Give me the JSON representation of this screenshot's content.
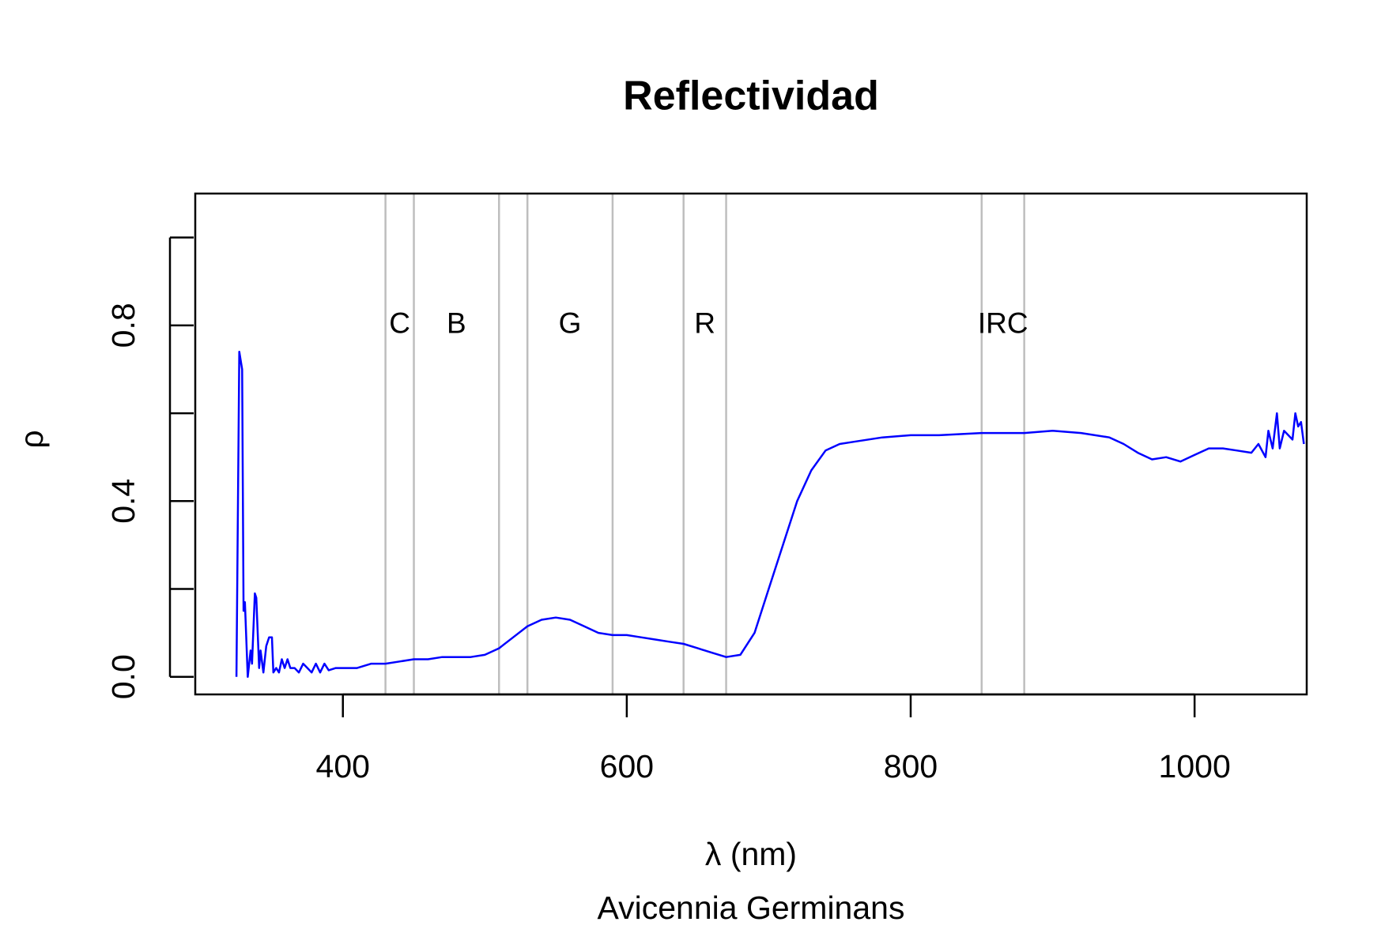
{
  "chart_data": {
    "type": "line",
    "title": "Reflectividad",
    "subtitle": "Avicennia Germinans",
    "xlabel": "λ (nm)",
    "ylabel": "ρ",
    "x": [
      325,
      327,
      329,
      330,
      331,
      333,
      335,
      336,
      338,
      339,
      341,
      342,
      344,
      346,
      348,
      350,
      351,
      353,
      355,
      357,
      359,
      361,
      363,
      366,
      369,
      372,
      375,
      378,
      381,
      384,
      387,
      390,
      395,
      400,
      410,
      420,
      430,
      440,
      450,
      460,
      470,
      480,
      490,
      500,
      510,
      520,
      530,
      540,
      550,
      560,
      570,
      580,
      590,
      600,
      610,
      620,
      630,
      640,
      650,
      660,
      670,
      680,
      690,
      700,
      710,
      720,
      730,
      740,
      750,
      760,
      780,
      800,
      820,
      850,
      880,
      900,
      920,
      940,
      950,
      960,
      970,
      980,
      990,
      1000,
      1010,
      1020,
      1030,
      1040,
      1045,
      1050,
      1052,
      1055,
      1058,
      1060,
      1063,
      1066,
      1069,
      1071,
      1073,
      1075,
      1077
    ],
    "series": [
      {
        "name": "Avicennia Germinans",
        "color": "#0000ff",
        "values": [
          0,
          0.74,
          0.7,
          0.15,
          0.17,
          0.0,
          0.06,
          0.03,
          0.19,
          0.18,
          0.02,
          0.06,
          0.01,
          0.07,
          0.09,
          0.09,
          0.01,
          0.02,
          0.01,
          0.04,
          0.02,
          0.04,
          0.02,
          0.02,
          0.01,
          0.03,
          0.02,
          0.01,
          0.03,
          0.01,
          0.03,
          0.015,
          0.02,
          0.02,
          0.02,
          0.03,
          0.03,
          0.035,
          0.04,
          0.04,
          0.045,
          0.045,
          0.045,
          0.05,
          0.065,
          0.09,
          0.115,
          0.13,
          0.135,
          0.13,
          0.115,
          0.1,
          0.095,
          0.095,
          0.09,
          0.085,
          0.08,
          0.075,
          0.065,
          0.055,
          0.045,
          0.05,
          0.1,
          0.2,
          0.3,
          0.4,
          0.47,
          0.515,
          0.53,
          0.535,
          0.545,
          0.55,
          0.55,
          0.555,
          0.555,
          0.56,
          0.555,
          0.545,
          0.53,
          0.51,
          0.495,
          0.5,
          0.49,
          0.505,
          0.52,
          0.52,
          0.515,
          0.51,
          0.53,
          0.5,
          0.56,
          0.52,
          0.6,
          0.52,
          0.56,
          0.55,
          0.54,
          0.6,
          0.57,
          0.58,
          0.53
        ]
      }
    ],
    "xlim": [
      296,
      1079
    ],
    "ylim": [
      -0.04,
      1.1
    ],
    "xticks": [
      400,
      600,
      800,
      1000
    ],
    "yticks": [
      {
        "value": 0,
        "label": "0.0"
      },
      {
        "value": 0.2,
        "label": null
      },
      {
        "value": 0.4,
        "label": "0.4"
      },
      {
        "value": 0.6,
        "label": null
      },
      {
        "value": 0.8,
        "label": "0.8"
      },
      {
        "value": 1.0,
        "label": null
      }
    ],
    "vlines": [
      430,
      450,
      510,
      530,
      590,
      640,
      670,
      850,
      880
    ],
    "vline_color": "#bebebe",
    "annotations": [
      {
        "text": "C",
        "x": 440,
        "y": 0.8
      },
      {
        "text": "B",
        "x": 480,
        "y": 0.8
      },
      {
        "text": "G",
        "x": 560,
        "y": 0.8
      },
      {
        "text": "R",
        "x": 655,
        "y": 0.8
      },
      {
        "text": "IRC",
        "x": 865,
        "y": 0.8
      }
    ]
  }
}
